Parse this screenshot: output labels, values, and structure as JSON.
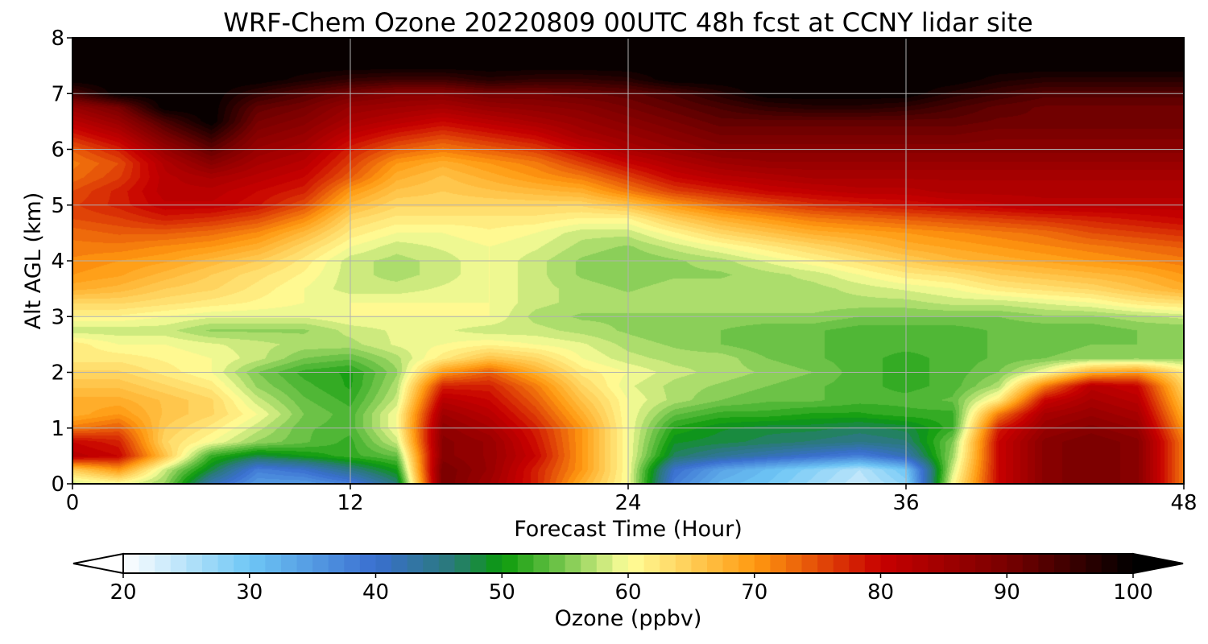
{
  "chart_data": {
    "type": "heatmap",
    "title": "WRF-Chem Ozone  20220809 00UTC 48h fcst at CCNY lidar site",
    "xlabel": "Forecast Time (Hour)",
    "ylabel": "Alt AGL (km)",
    "xlim": [
      0,
      48
    ],
    "ylim": [
      0,
      8
    ],
    "xticks": [
      0,
      12,
      24,
      36,
      48
    ],
    "yticks": [
      0,
      1,
      2,
      3,
      4,
      5,
      6,
      7,
      8
    ],
    "grid": true,
    "colorbar": {
      "label": "Ozone  (ppbv)",
      "orientation": "horizontal",
      "placement": "bottom",
      "range": [
        20,
        100
      ],
      "ticks": [
        20,
        30,
        40,
        50,
        60,
        70,
        80,
        90,
        100
      ],
      "extend": "both",
      "stops": [
        {
          "value": 20,
          "color": "#ffffff"
        },
        {
          "value": 30,
          "color": "#6ec6f5"
        },
        {
          "value": 40,
          "color": "#3a6fd0"
        },
        {
          "value": 46,
          "color": "#2a7a7a"
        },
        {
          "value": 50,
          "color": "#0a9a0a"
        },
        {
          "value": 55,
          "color": "#7ac850"
        },
        {
          "value": 60,
          "color": "#ffff9a"
        },
        {
          "value": 70,
          "color": "#ff9a10"
        },
        {
          "value": 80,
          "color": "#c80000"
        },
        {
          "value": 90,
          "color": "#780000"
        },
        {
          "value": 100,
          "color": "#000000"
        }
      ]
    },
    "x": [
      0,
      2,
      4,
      6,
      8,
      10,
      12,
      14,
      16,
      18,
      20,
      22,
      24,
      26,
      28,
      30,
      32,
      34,
      36,
      38,
      40,
      42,
      44,
      46,
      48
    ],
    "y": [
      0,
      0.25,
      0.5,
      0.75,
      1,
      1.25,
      1.5,
      1.75,
      2,
      2.25,
      2.5,
      2.75,
      3,
      3.25,
      3.5,
      3.75,
      4,
      4.25,
      4.5,
      4.75,
      5,
      5.25,
      5.5,
      5.75,
      6,
      6.25,
      6.5,
      6.75,
      7,
      7.25,
      7.5,
      7.75,
      8
    ],
    "z": [
      [
        58,
        60,
        56,
        42,
        35,
        35,
        38,
        46,
        90,
        85,
        78,
        68,
        60,
        38,
        32,
        30,
        27,
        24,
        28,
        60,
        80,
        88,
        90,
        88,
        72
      ],
      [
        65,
        70,
        58,
        48,
        38,
        40,
        45,
        50,
        90,
        86,
        78,
        70,
        60,
        40,
        34,
        31,
        28,
        25,
        30,
        58,
        80,
        88,
        90,
        88,
        72
      ],
      [
        82,
        80,
        66,
        52,
        48,
        50,
        52,
        54,
        88,
        86,
        80,
        70,
        60,
        47,
        44,
        42,
        40,
        38,
        42,
        56,
        80,
        88,
        90,
        88,
        72
      ],
      [
        80,
        78,
        64,
        60,
        56,
        54,
        52,
        58,
        88,
        86,
        79,
        70,
        60,
        49,
        48,
        47,
        46,
        45,
        46,
        55,
        80,
        88,
        90,
        88,
        72
      ],
      [
        72,
        74,
        65,
        62,
        58,
        54,
        53,
        60,
        87,
        84,
        78,
        70,
        60,
        51,
        49,
        48,
        48,
        47,
        48,
        52,
        78,
        86,
        88,
        86,
        70
      ],
      [
        68,
        70,
        66,
        64,
        60,
        55,
        53,
        60,
        85,
        82,
        76,
        68,
        60,
        54,
        52,
        52,
        51,
        51,
        52,
        52,
        72,
        84,
        86,
        84,
        68
      ],
      [
        68,
        68,
        66,
        64,
        58,
        54,
        52,
        58,
        82,
        80,
        74,
        66,
        60,
        57,
        55,
        54,
        54,
        53,
        53,
        54,
        62,
        80,
        84,
        82,
        66
      ],
      [
        66,
        66,
        64,
        62,
        56,
        53,
        51,
        57,
        78,
        78,
        72,
        64,
        59,
        57,
        56,
        55,
        54,
        53,
        52,
        53,
        57,
        72,
        82,
        80,
        64
      ],
      [
        64,
        64,
        62,
        60,
        55,
        52,
        51,
        56,
        70,
        74,
        68,
        62,
        60,
        58,
        57,
        56,
        55,
        53,
        52,
        53,
        55,
        60,
        68,
        70,
        62
      ],
      [
        62,
        62,
        61,
        60,
        58,
        55,
        54,
        57,
        62,
        66,
        64,
        60,
        58,
        57,
        57,
        55,
        54,
        53,
        52,
        53,
        54,
        55,
        56,
        56,
        56
      ],
      [
        62,
        60,
        60,
        59,
        58,
        57,
        57,
        59,
        60,
        61,
        60,
        59,
        57,
        56,
        55,
        54,
        54,
        53,
        53,
        53,
        54,
        54,
        55,
        55,
        55
      ],
      [
        58,
        58,
        58,
        56,
        56,
        56,
        58,
        59,
        59,
        58,
        58,
        57,
        56,
        55,
        55,
        54,
        54,
        53,
        53,
        53,
        54,
        54,
        54,
        55,
        55
      ],
      [
        61,
        61,
        60,
        59,
        59,
        59,
        60,
        60,
        60,
        60,
        57,
        56,
        56,
        56,
        56,
        56,
        56,
        55,
        55,
        55,
        55,
        56,
        56,
        57,
        58
      ],
      [
        64,
        64,
        63,
        62,
        61,
        60,
        60,
        60,
        60,
        60,
        58,
        57,
        57,
        57,
        57,
        57,
        57,
        57,
        57,
        58,
        58,
        59,
        60,
        62,
        63
      ],
      [
        68,
        67,
        65,
        64,
        62,
        60,
        58,
        58,
        59,
        60,
        58,
        57,
        56,
        57,
        57,
        57,
        57,
        58,
        59,
        60,
        62,
        63,
        64,
        66,
        68
      ],
      [
        70,
        69,
        67,
        65,
        63,
        61,
        58,
        57,
        58,
        60,
        58,
        56,
        55,
        56,
        56,
        57,
        58,
        60,
        62,
        63,
        65,
        66,
        67,
        68,
        70
      ],
      [
        71,
        70,
        69,
        67,
        65,
        62,
        58,
        57,
        58,
        60,
        58,
        56,
        55,
        56,
        57,
        59,
        61,
        63,
        65,
        67,
        68,
        69,
        70,
        71,
        72
      ],
      [
        72,
        72,
        71,
        70,
        68,
        64,
        60,
        58,
        59,
        60,
        59,
        57,
        56,
        58,
        60,
        62,
        64,
        66,
        68,
        69,
        70,
        71,
        72,
        73,
        74
      ],
      [
        73,
        74,
        74,
        73,
        71,
        67,
        62,
        60,
        60,
        61,
        60,
        58,
        58,
        61,
        64,
        66,
        68,
        69,
        70,
        71,
        72,
        73,
        75,
        76,
        77
      ],
      [
        75,
        76,
        78,
        77,
        75,
        71,
        64,
        62,
        62,
        62,
        62,
        61,
        61,
        65,
        68,
        70,
        72,
        73,
        74,
        75,
        76,
        77,
        78,
        79,
        80
      ],
      [
        76,
        78,
        81,
        81,
        79,
        75,
        67,
        64,
        64,
        64,
        64,
        64,
        66,
        70,
        73,
        75,
        77,
        78,
        79,
        80,
        81,
        82,
        82,
        82,
        82
      ],
      [
        75,
        78,
        82,
        82,
        80,
        78,
        70,
        66,
        65,
        66,
        67,
        68,
        72,
        76,
        78,
        80,
        81,
        82,
        82,
        83,
        83,
        83,
        83,
        83,
        83
      ],
      [
        73,
        76,
        82,
        84,
        82,
        80,
        74,
        68,
        66,
        68,
        70,
        72,
        76,
        80,
        82,
        83,
        84,
        84,
        84,
        84,
        84,
        84,
        84,
        84,
        84
      ],
      [
        72,
        75,
        83,
        88,
        84,
        82,
        76,
        70,
        68,
        70,
        72,
        76,
        80,
        83,
        85,
        86,
        86,
        86,
        86,
        86,
        86,
        86,
        86,
        86,
        86
      ],
      [
        74,
        78,
        86,
        92,
        86,
        84,
        78,
        74,
        72,
        74,
        76,
        80,
        84,
        86,
        88,
        88,
        88,
        88,
        88,
        88,
        88,
        88,
        88,
        88,
        88
      ],
      [
        78,
        82,
        90,
        96,
        88,
        86,
        81,
        78,
        76,
        78,
        80,
        84,
        86,
        88,
        90,
        90,
        90,
        90,
        90,
        90,
        89,
        89,
        89,
        89,
        89
      ],
      [
        82,
        86,
        94,
        100,
        90,
        88,
        84,
        82,
        80,
        82,
        84,
        86,
        88,
        90,
        92,
        92,
        92,
        92,
        92,
        92,
        91,
        91,
        91,
        91,
        91
      ],
      [
        86,
        90,
        100,
        100,
        92,
        90,
        86,
        85,
        84,
        86,
        87,
        88,
        90,
        92,
        94,
        96,
        97,
        97,
        96,
        94,
        92,
        91,
        91,
        91,
        91
      ],
      [
        94,
        100,
        100,
        100,
        96,
        93,
        90,
        88,
        88,
        90,
        90,
        91,
        92,
        94,
        97,
        100,
        100,
        100,
        100,
        97,
        95,
        93,
        93,
        93,
        93
      ],
      [
        100,
        100,
        100,
        100,
        100,
        98,
        96,
        95,
        95,
        97,
        96,
        96,
        97,
        100,
        100,
        100,
        100,
        100,
        100,
        100,
        98,
        97,
        97,
        97,
        97
      ],
      [
        100,
        100,
        100,
        100,
        100,
        100,
        100,
        100,
        100,
        100,
        100,
        100,
        100,
        100,
        100,
        100,
        100,
        100,
        100,
        100,
        100,
        100,
        100,
        100,
        100
      ],
      [
        100,
        100,
        100,
        100,
        100,
        100,
        100,
        100,
        100,
        100,
        100,
        100,
        100,
        100,
        100,
        100,
        100,
        100,
        100,
        100,
        100,
        100,
        100,
        100,
        100
      ],
      [
        100,
        100,
        100,
        100,
        100,
        100,
        100,
        100,
        100,
        100,
        100,
        100,
        100,
        100,
        100,
        100,
        100,
        100,
        100,
        100,
        100,
        100,
        100,
        100,
        100
      ]
    ]
  }
}
